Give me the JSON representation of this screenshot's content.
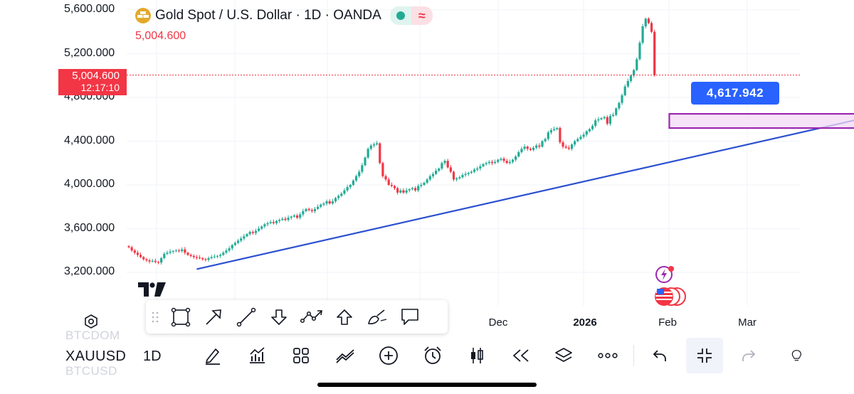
{
  "header": {
    "title": "Gold Spot / U.S. Dollar · 1D · OANDA",
    "last_price": "5,004.600"
  },
  "price_scale": {
    "labels": [
      "5,600.000",
      "5,200.000",
      "4,800.000",
      "4,400.000",
      "4,000.000",
      "3,600.000",
      "3,200.000"
    ],
    "current_price": "5,004.600",
    "countdown": "12:17:10"
  },
  "time_scale": {
    "labels": [
      {
        "text": "Dec",
        "bold": false
      },
      {
        "text": "2026",
        "bold": true
      },
      {
        "text": "Feb",
        "bold": false
      },
      {
        "text": "Mar",
        "bold": false
      }
    ]
  },
  "annotations": {
    "trendline_label": "4,617.942"
  },
  "toolbar": {
    "symbol": "XAUUSD",
    "interval": "1D",
    "ghost_above": "BTCDOM",
    "ghost_below": "BTCUSD"
  },
  "colors": {
    "up": "#22ab94",
    "down": "#f23645",
    "trendline": "#2b50d0",
    "zone_border": "#9c27b0",
    "zone_fill": "#f3d9f5",
    "callout": "#2962ff"
  },
  "chart_data": {
    "type": "candlestick",
    "symbol": "XAUUSD",
    "title": "Gold Spot / U.S. Dollar · 1D · OANDA",
    "ylim": [
      3000,
      5650
    ],
    "y_ticks": [
      3200,
      3600,
      4000,
      4400,
      4800,
      5200,
      5600
    ],
    "x_ticks": [
      "Dec",
      "2026",
      "Feb",
      "Mar"
    ],
    "last_price": 5004.6,
    "closes": [
      3430,
      3400,
      3380,
      3360,
      3340,
      3320,
      3310,
      3300,
      3305,
      3295,
      3290,
      3330,
      3370,
      3380,
      3390,
      3395,
      3400,
      3395,
      3410,
      3380,
      3360,
      3350,
      3340,
      3335,
      3330,
      3320,
      3315,
      3330,
      3340,
      3345,
      3350,
      3360,
      3380,
      3400,
      3420,
      3450,
      3470,
      3490,
      3510,
      3530,
      3550,
      3570,
      3560,
      3580,
      3600,
      3620,
      3640,
      3650,
      3660,
      3650,
      3670,
      3680,
      3690,
      3680,
      3700,
      3710,
      3720,
      3700,
      3730,
      3760,
      3780,
      3770,
      3760,
      3780,
      3800,
      3820,
      3830,
      3850,
      3830,
      3850,
      3880,
      3900,
      3920,
      3950,
      3980,
      4000,
      4040,
      4080,
      4120,
      4180,
      4250,
      4330,
      4360,
      4370,
      4380,
      4200,
      4080,
      4050,
      4000,
      3990,
      3970,
      3930,
      3950,
      3930,
      3950,
      3960,
      3970,
      3950,
      3990,
      4000,
      4020,
      4050,
      4080,
      4100,
      4130,
      4150,
      4200,
      4220,
      4160,
      4120,
      4050,
      4060,
      4070,
      4090,
      4100,
      4110,
      4120,
      4140,
      4150,
      4170,
      4190,
      4200,
      4210,
      4200,
      4210,
      4230,
      4240,
      4220,
      4200,
      4210,
      4230,
      4260,
      4300,
      4330,
      4350,
      4330,
      4320,
      4340,
      4360,
      4350,
      4400,
      4420,
      4480,
      4500,
      4510,
      4520,
      4390,
      4350,
      4340,
      4330,
      4370,
      4400,
      4420,
      4440,
      4460,
      4490,
      4510,
      4540,
      4590,
      4600,
      4610,
      4620,
      4560,
      4630,
      4640,
      4700,
      4750,
      4820,
      4900,
      4950,
      5000,
      5050,
      5150,
      5300,
      5450,
      5520,
      5480,
      5400,
      5004.6
    ],
    "trendline": {
      "start": {
        "index": 23,
        "price": 3230
      },
      "end": {
        "index": 275,
        "price": 4770
      },
      "label": 4617.942
    },
    "zone": {
      "from_index": 183,
      "to_index": 265,
      "top": 4650,
      "bottom": 4520
    }
  }
}
